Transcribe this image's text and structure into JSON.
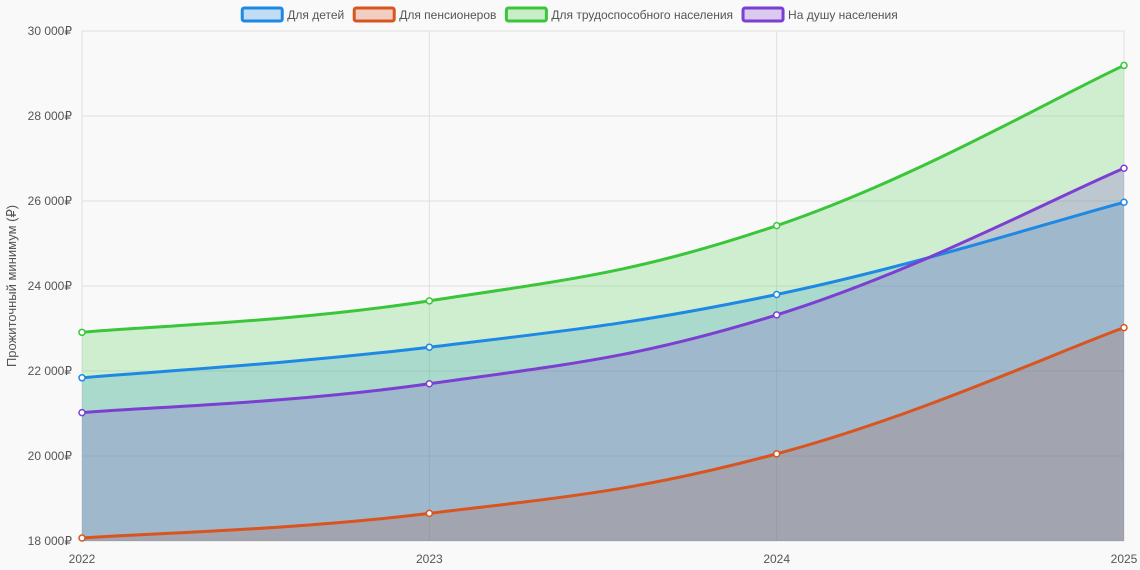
{
  "chart_data": {
    "type": "area",
    "title": "",
    "xlabel": "",
    "ylabel": "Прожиточный минимум (₽)",
    "x": [
      "2022",
      "2023",
      "2024",
      "2025"
    ],
    "ylim": [
      18000,
      30000
    ],
    "yticks": [
      18000,
      20000,
      22000,
      24000,
      26000,
      28000,
      30000
    ],
    "ytick_labels": [
      "18 000₽",
      "20 000₽",
      "22 000₽",
      "24 000₽",
      "26 000₽",
      "28 000₽",
      "30 000₽"
    ],
    "grid": true,
    "legend_position": "top",
    "series": [
      {
        "name": "Для детей",
        "values": [
          21840,
          22560,
          23800,
          25970
        ],
        "color": "#1e88e5"
      },
      {
        "name": "Для пенсионеров",
        "values": [
          18070,
          18650,
          20050,
          23020
        ],
        "color": "#d9541e"
      },
      {
        "name": "Для трудоспособного населения",
        "values": [
          22910,
          23650,
          25420,
          29190
        ],
        "color": "#3ac63a"
      },
      {
        "name": "На душу населения",
        "values": [
          21020,
          21700,
          23320,
          26770
        ],
        "color": "#7b3fd1"
      }
    ]
  }
}
